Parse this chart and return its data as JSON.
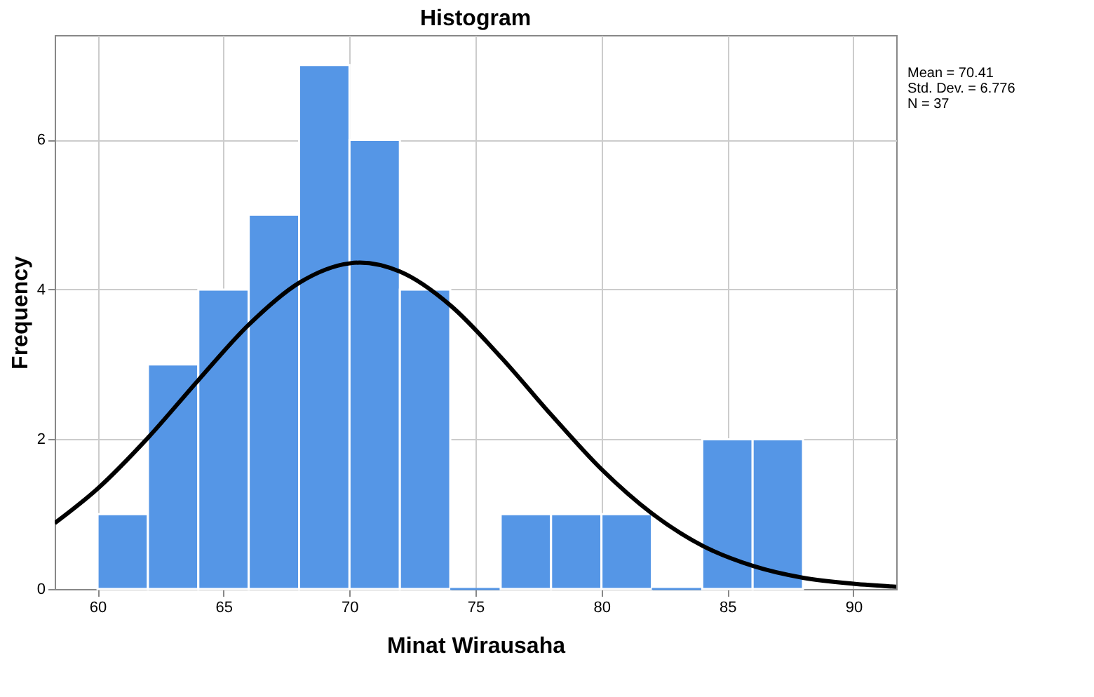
{
  "chart_data": {
    "type": "histogram",
    "title": "Histogram",
    "xlabel": "Minat  Wirausaha",
    "ylabel": "Frequency",
    "xlim": [
      58.3,
      91.7
    ],
    "xticks": [
      60,
      65,
      70,
      75,
      80,
      85,
      90
    ],
    "ylim": [
      0,
      7.4
    ],
    "yticks": [
      0,
      2,
      4,
      6
    ],
    "grid": true,
    "series": [
      {
        "color": "#5596e6",
        "bins": [
          60,
          62,
          64,
          66,
          68,
          70,
          72,
          74,
          76,
          78,
          80,
          82,
          84,
          86,
          88
        ],
        "values": [
          1,
          3,
          4,
          5,
          7,
          6,
          4,
          0,
          1,
          1,
          1,
          0,
          2,
          2
        ]
      },
      {
        "type": "line",
        "color": "#000000",
        "x": [
          58.3,
          60,
          62,
          64,
          66,
          68,
          70,
          70.41,
          72,
          74,
          76,
          78,
          80,
          82,
          84,
          86,
          88,
          90,
          91.7
        ],
        "values": [
          0.88,
          1.34,
          2.02,
          2.79,
          3.53,
          4.09,
          4.35,
          4.36,
          4.24,
          3.79,
          3.1,
          2.33,
          1.6,
          1.01,
          0.58,
          0.31,
          0.15,
          0.07,
          0.03
        ]
      }
    ],
    "annotations": [
      "Mean = 70.41",
      "Std. Dev. = 6.776",
      "N = 37"
    ]
  }
}
